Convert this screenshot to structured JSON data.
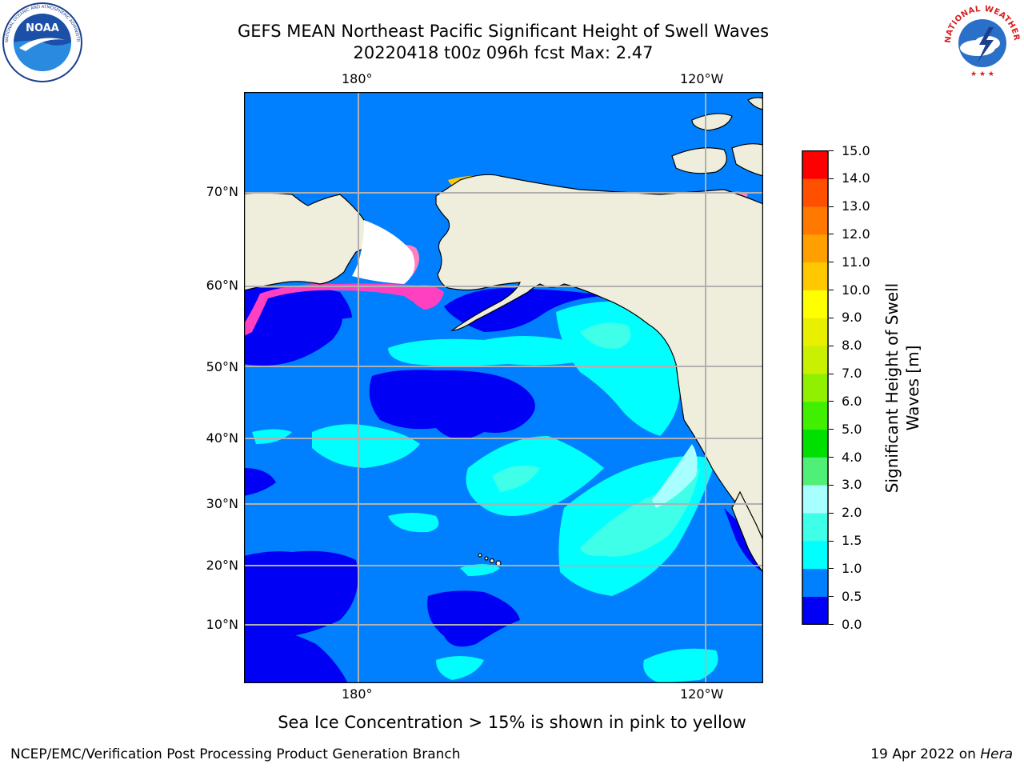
{
  "header": {
    "title": "GEFS MEAN Northeast Pacific Significant Height of Swell Waves",
    "subtitle": "20220418 t00z 096h fcst   Max: 2.47"
  },
  "logos": {
    "noaa": {
      "text": "NOAA",
      "ring_text": "NATIONAL OCEANIC AND ATMOSPHERIC ADMINISTRATION · U.S. DEPARTMENT OF COMMERCE"
    },
    "nws": {
      "ring_text": "NATIONAL WEATHER SERVICE"
    }
  },
  "map": {
    "lon_labels": [
      "180°",
      "120°W"
    ],
    "lat_labels": [
      "70°N",
      "60°N",
      "50°N",
      "40°N",
      "30°N",
      "20°N",
      "10°N"
    ],
    "land_color": "#efeedc",
    "grid_color": "#b0b0b0"
  },
  "colorbar": {
    "title_line1": "Significant Height of Swell",
    "title_line2": "Waves [m]",
    "ticks": [
      "15.0",
      "14.0",
      "13.0",
      "12.0",
      "11.0",
      "10.0",
      "9.0",
      "8.0",
      "7.0",
      "6.0",
      "5.0",
      "4.0",
      "3.0",
      "2.0",
      "1.5",
      "1.0",
      "0.5",
      "0.0"
    ],
    "colors_bottom_to_top": [
      "#0000f5",
      "#0080ff",
      "#00ffff",
      "#40ffe8",
      "#a8ffff",
      "#50f078",
      "#00e000",
      "#40f000",
      "#90f000",
      "#c8f000",
      "#e8f000",
      "#ffff00",
      "#ffc800",
      "#ffa000",
      "#ff7800",
      "#ff5000",
      "#ff0000"
    ]
  },
  "footer": {
    "ice_note": "Sea Ice Concentration > 15% is shown in pink to yellow",
    "credit": "NCEP/EMC/Verification Post Processing Product Generation Branch",
    "date": "19 Apr 2022 on ",
    "machine": "Hera"
  }
}
